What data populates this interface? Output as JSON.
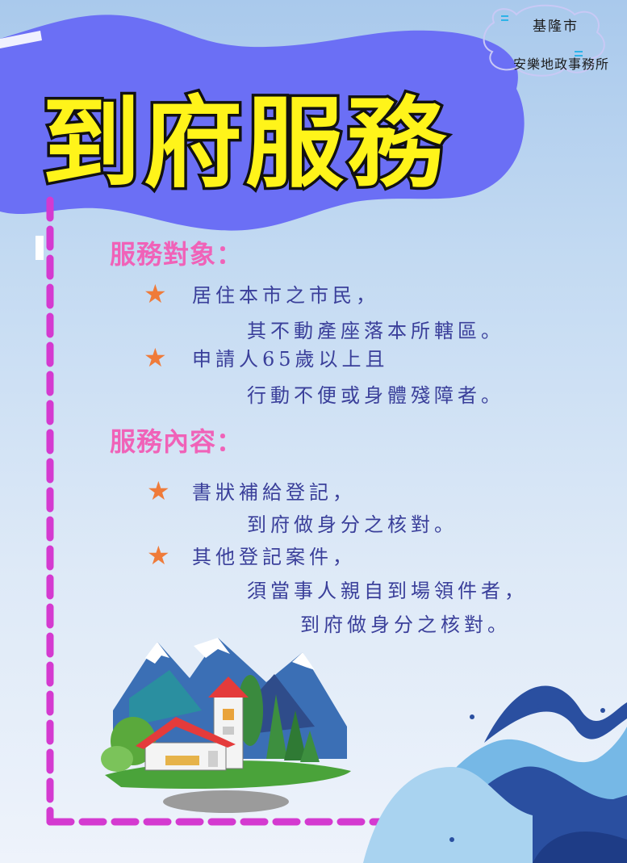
{
  "org": {
    "city": "基隆市",
    "name": "安樂地政事務所"
  },
  "title": "到府服務",
  "sections": [
    {
      "heading": "服務對象：",
      "items": [
        {
          "lines": [
            "居住本市之市民，",
            "其不動產座落本所轄區。"
          ]
        },
        {
          "lines": [
            "申請人65歲以上且",
            "行動不便或身體殘障者。"
          ]
        }
      ]
    },
    {
      "heading": "服務內容：",
      "items": [
        {
          "lines": [
            "書狀補給登記，",
            "到府做身分之核對。"
          ]
        },
        {
          "lines": [
            "其他登記案件，",
            "須當事人親自到場領件者，",
            "到府做身分之核對。"
          ]
        }
      ]
    }
  ],
  "bullet_symbol": "★",
  "colors": {
    "banner": "#6b6ff5",
    "title_fill": "#fff41a",
    "title_stroke": "#111111",
    "heading": "#f062b8",
    "body_text": "#3a3f9a",
    "bullet": "#ef7b3a",
    "frame_dash": "#d43ad0"
  }
}
